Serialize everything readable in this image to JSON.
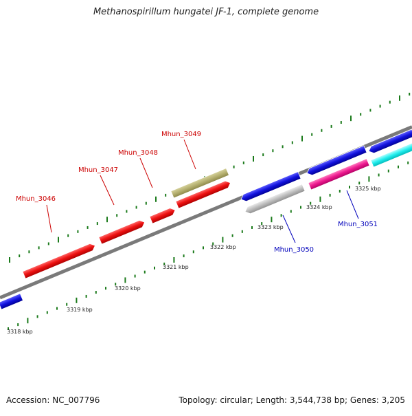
{
  "title": "Methanospirillum hungatei JF-1, complete genome",
  "accession_text": "Accession: NC_007796",
  "topology_text": "Topology: circular; Length: 3,544,738 bp; Genes: 3,205",
  "colors": {
    "backbone": "#7a7a7a",
    "tick": "#1a7a1a",
    "label_forward": "#cc0000",
    "label_reverse": "#0000bb"
  },
  "ruler_labels": [
    "3318 kbp",
    "3319 kbp",
    "3320 kbp",
    "3321 kbp",
    "3322 kbp",
    "3323 kbp",
    "3324 kbp",
    "3325 kbp"
  ],
  "genes": [
    {
      "name": "Mhun_3046",
      "strand": "forward",
      "color": "#ee1111",
      "labeled": true
    },
    {
      "name": "Mhun_3047",
      "strand": "forward",
      "color": "#ee1111",
      "labeled": true
    },
    {
      "name": "Mhun_3048",
      "strand": "forward",
      "color": "#ee1111",
      "labeled": true
    },
    {
      "name": "Mhun_3049",
      "strand": "forward",
      "color": "#ee1111",
      "labeled": true
    },
    {
      "name": "Mhun_3049 (upper)",
      "strand": "forward",
      "color": "#b5b070",
      "labeled": false
    },
    {
      "name": "Mhun_3050",
      "strand": "reverse",
      "color": "#bdbdbd",
      "labeled": true
    },
    {
      "name": "Mhun_3051",
      "strand": "reverse",
      "color": "#ee1a90",
      "labeled": true
    },
    {
      "name": "reverse gene (outer)",
      "strand": "reverse",
      "color": "#1111dd",
      "labeled": false
    },
    {
      "name": "reverse gene (outer 2)",
      "strand": "reverse",
      "color": "#1111dd",
      "labeled": false
    },
    {
      "name": "reverse gene (outer 3)",
      "strand": "reverse",
      "color": "#1111dd",
      "labeled": false
    },
    {
      "name": "reverse gene (cyan)",
      "strand": "reverse",
      "color": "#22eeee",
      "labeled": false
    },
    {
      "name": "reverse gene (left)",
      "strand": "reverse",
      "color": "#1111dd",
      "labeled": false
    }
  ]
}
